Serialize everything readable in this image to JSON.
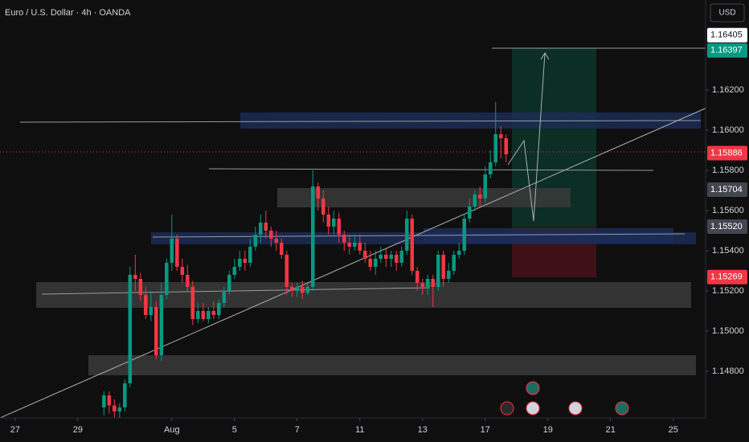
{
  "chart_data": {
    "type": "candlestick",
    "title": "Euro / U.S. Dollar · 4h · OANDA",
    "currency": "USD",
    "up_color": "#089981",
    "down_color": "#f23645",
    "x": [
      17,
      18,
      19,
      20,
      21,
      22,
      23,
      24,
      25,
      26,
      27,
      28,
      29,
      30,
      31,
      32,
      33,
      34,
      35,
      36,
      37,
      38,
      39,
      40,
      41,
      42,
      43,
      44,
      45,
      46,
      47,
      48,
      49,
      50,
      51,
      52,
      53,
      54,
      55,
      56,
      57,
      58,
      59,
      60,
      61,
      62,
      63,
      64,
      65,
      66,
      67,
      68,
      69,
      70,
      71,
      72,
      73,
      74,
      75,
      76,
      77,
      78,
      79,
      80,
      81,
      82,
      83,
      84,
      85,
      86,
      87,
      88,
      89,
      90,
      91,
      92,
      93,
      94
    ],
    "open": [
      1.1462,
      1.1468,
      1.1463,
      1.146,
      1.1462,
      1.1474,
      1.1528,
      1.1526,
      1.1518,
      1.1508,
      1.1512,
      1.1488,
      1.1518,
      1.1534,
      1.1546,
      1.1532,
      1.1528,
      1.1522,
      1.1506,
      1.151,
      1.1506,
      1.151,
      1.1508,
      1.1514,
      1.152,
      1.1528,
      1.1532,
      1.1536,
      1.1534,
      1.1542,
      1.1548,
      1.1554,
      1.155,
      1.1546,
      1.1544,
      1.1538,
      1.1522,
      1.152,
      1.1522,
      1.1519,
      1.1522,
      1.1572,
      1.1566,
      1.1558,
      1.1552,
      1.1556,
      1.1548,
      1.1544,
      1.1542,
      1.1544,
      1.154,
      1.1536,
      1.1532,
      1.1536,
      1.1538,
      1.1536,
      1.1538,
      1.1534,
      1.154,
      1.1556,
      1.153,
      1.1524,
      1.1522,
      1.1526,
      1.1522,
      1.1538,
      1.1526,
      1.153,
      1.1538,
      1.154,
      1.1556,
      1.1562,
      1.1568,
      1.1566,
      1.1578,
      1.1584,
      1.1598,
      1.1596
    ],
    "high": [
      1.147,
      1.147,
      1.1466,
      1.1464,
      1.1476,
      1.1532,
      1.1538,
      1.1529,
      1.1522,
      1.152,
      1.1515,
      1.1524,
      1.1536,
      1.1558,
      1.1548,
      1.1536,
      1.1533,
      1.1525,
      1.1514,
      1.1514,
      1.1512,
      1.1515,
      1.1516,
      1.1522,
      1.153,
      1.1536,
      1.154,
      1.154,
      1.1546,
      1.1552,
      1.1558,
      1.156,
      1.1552,
      1.155,
      1.1546,
      1.154,
      1.1524,
      1.1524,
      1.1525,
      1.1524,
      1.158,
      1.1574,
      1.157,
      1.1562,
      1.156,
      1.1559,
      1.155,
      1.1548,
      1.1548,
      1.1548,
      1.1544,
      1.154,
      1.154,
      1.1542,
      1.1541,
      1.154,
      1.154,
      1.1542,
      1.156,
      1.1558,
      1.1532,
      1.1526,
      1.1528,
      1.1528,
      1.154,
      1.154,
      1.1534,
      1.154,
      1.1544,
      1.1558,
      1.1566,
      1.157,
      1.1572,
      1.1582,
      1.159,
      1.1614,
      1.1602,
      1.1598
    ],
    "low": [
      1.1458,
      1.1459,
      1.1457,
      1.1457,
      1.146,
      1.1472,
      1.152,
      1.1515,
      1.1506,
      1.1505,
      1.1486,
      1.1485,
      1.1516,
      1.153,
      1.153,
      1.1524,
      1.152,
      1.1503,
      1.1504,
      1.1505,
      1.1504,
      1.1506,
      1.1506,
      1.1512,
      1.1518,
      1.1526,
      1.153,
      1.153,
      1.1532,
      1.154,
      1.1544,
      1.1546,
      1.1542,
      1.154,
      1.1536,
      1.1518,
      1.1517,
      1.1517,
      1.1516,
      1.1518,
      1.152,
      1.156,
      1.1554,
      1.1548,
      1.1548,
      1.1544,
      1.154,
      1.1538,
      1.154,
      1.1538,
      1.1534,
      1.153,
      1.1528,
      1.1534,
      1.1532,
      1.1532,
      1.153,
      1.1532,
      1.1538,
      1.1528,
      1.152,
      1.1518,
      1.1518,
      1.1512,
      1.152,
      1.1522,
      1.1524,
      1.1528,
      1.1536,
      1.1538,
      1.1554,
      1.156,
      1.1562,
      1.1564,
      1.1576,
      1.1582,
      1.1586,
      1.1584
    ],
    "close": [
      1.1468,
      1.1463,
      1.146,
      1.1462,
      1.1474,
      1.1528,
      1.1526,
      1.1518,
      1.1508,
      1.1512,
      1.1488,
      1.1518,
      1.1534,
      1.1546,
      1.1532,
      1.1528,
      1.1522,
      1.1506,
      1.151,
      1.1506,
      1.151,
      1.1508,
      1.1514,
      1.152,
      1.1528,
      1.1532,
      1.1536,
      1.1534,
      1.1542,
      1.1548,
      1.1554,
      1.155,
      1.1546,
      1.1544,
      1.1538,
      1.1522,
      1.152,
      1.1522,
      1.1519,
      1.1522,
      1.1572,
      1.1566,
      1.1558,
      1.1552,
      1.1556,
      1.1548,
      1.1544,
      1.1542,
      1.1544,
      1.154,
      1.1536,
      1.1532,
      1.1536,
      1.1538,
      1.1536,
      1.1538,
      1.1534,
      1.154,
      1.1556,
      1.153,
      1.1524,
      1.1522,
      1.1526,
      1.1522,
      1.1538,
      1.1526,
      1.153,
      1.1538,
      1.154,
      1.1556,
      1.1562,
      1.1568,
      1.1566,
      1.1578,
      1.1584,
      1.1598,
      1.1596,
      1.1588
    ],
    "xlim": [
      -2.9,
      132.2
    ],
    "xticks": [
      {
        "value": 0,
        "label": "27"
      },
      {
        "value": 12,
        "label": "29"
      },
      {
        "value": 30,
        "label": "Aug"
      },
      {
        "value": 42,
        "label": "5"
      },
      {
        "value": 54,
        "label": "7"
      },
      {
        "value": 66,
        "label": "11"
      },
      {
        "value": 78,
        "label": "13"
      },
      {
        "value": 90,
        "label": "17"
      },
      {
        "value": 102,
        "label": "19"
      },
      {
        "value": 114,
        "label": "21"
      },
      {
        "value": 126,
        "label": "25"
      }
    ],
    "ylim": [
      1.14568,
      1.16648
    ],
    "yticks": [
      {
        "value": 1.148,
        "label": "1.14800"
      },
      {
        "value": 1.15,
        "label": "1.15000"
      },
      {
        "value": 1.152,
        "label": "1.15200"
      },
      {
        "value": 1.154,
        "label": "1.15400"
      },
      {
        "value": 1.156,
        "label": "1.15600"
      },
      {
        "value": 1.158,
        "label": "1.15800"
      },
      {
        "value": 1.16,
        "label": "1.16000"
      },
      {
        "value": 1.162,
        "label": "1.16200"
      }
    ],
    "price_labels": [
      {
        "value": 1.16405,
        "label": "1.16405",
        "color": "#ffffff"
      },
      {
        "value": 1.16397,
        "label": "1.16397",
        "color": "#089981"
      },
      {
        "value": 1.15886,
        "label": "1.15886",
        "color": "#f23645"
      },
      {
        "value": 1.15704,
        "label": "1.15704",
        "color": "#434651"
      },
      {
        "value": 1.1552,
        "label": "1.15520",
        "color": "#434651"
      },
      {
        "value": 1.15269,
        "label": "1.15269",
        "color": "#f23645"
      }
    ]
  }
}
